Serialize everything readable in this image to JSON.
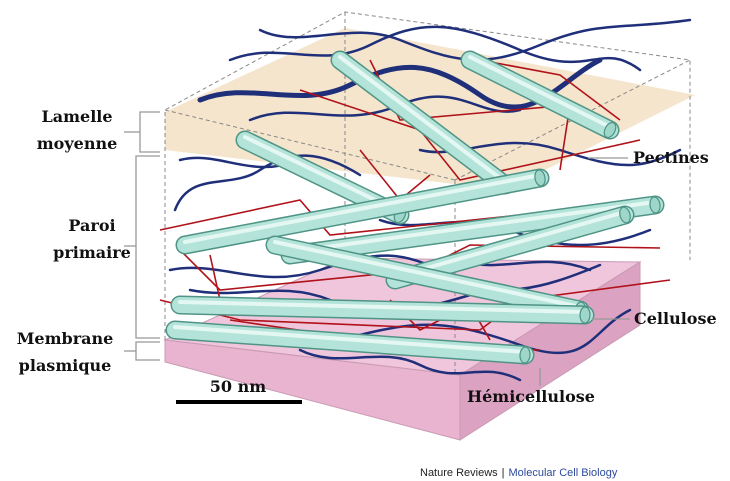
{
  "labels_left": [
    {
      "lines": [
        "Lamelle",
        "moyenne"
      ]
    },
    {
      "lines": [
        "Paroi",
        "primaire"
      ]
    },
    {
      "lines": [
        "Membrane",
        "plasmique"
      ]
    }
  ],
  "labels_right": {
    "pectines": "Pectines",
    "cellulose": "Cellulose",
    "hemicellulose": "Hémicellulose"
  },
  "scale_bar": "50 nm",
  "credit": {
    "publisher": "Nature Reviews",
    "separator": "|",
    "journal": "Molecular Cell Biology"
  }
}
